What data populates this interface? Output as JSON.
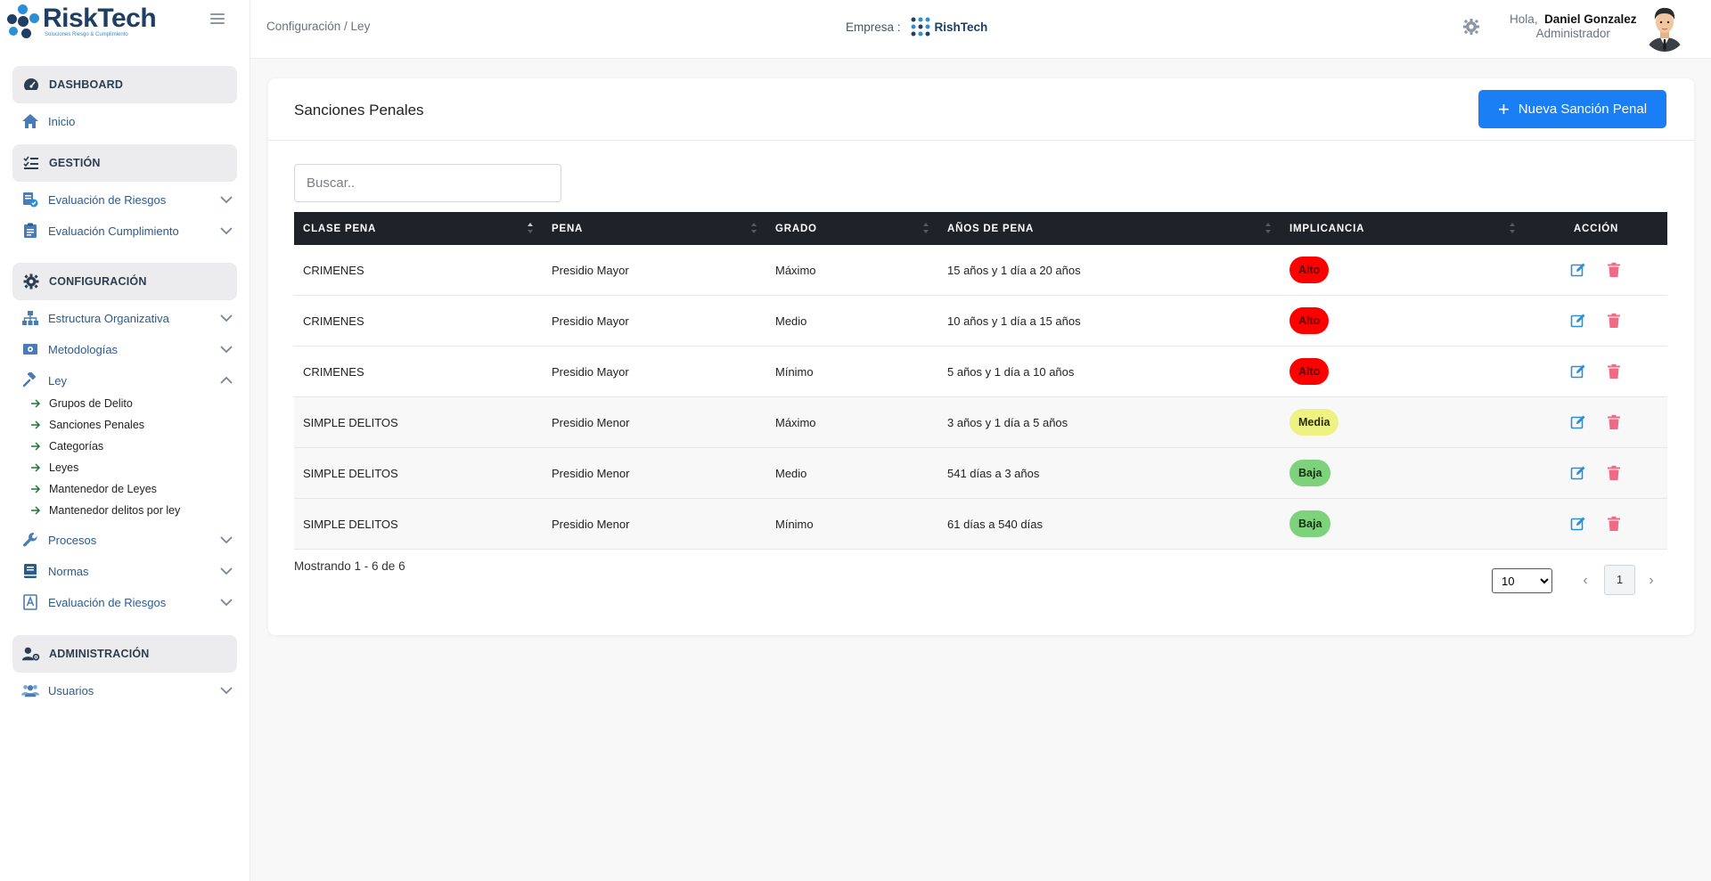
{
  "brand": {
    "name": "RiskTech",
    "tagline": "Soluciones Riesgo & Cumplimiento"
  },
  "header": {
    "breadcrumb": "Configuración / Ley",
    "empresa_label": "Empresa :",
    "empresa_name": "RishTech",
    "greeting": "Hola,",
    "user_name": "Daniel Gonzalez",
    "user_role": "Administrador"
  },
  "sidebar": {
    "sections": {
      "dashboard": "DASHBOARD",
      "gestion": "GESTIÓN",
      "configuracion": "CONFIGURACIÓN",
      "administracion": "ADMINISTRACIÓN"
    },
    "items": {
      "inicio": "Inicio",
      "eval_riesgos": "Evaluación de Riesgos",
      "eval_cumplimiento": "Evaluación Cumplimiento",
      "estructura": "Estructura Organizativa",
      "metodologias": "Metodologías",
      "ley": "Ley",
      "procesos": "Procesos",
      "normas": "Normas",
      "eval_riesgos_2": "Evaluación de Riesgos",
      "usuarios": "Usuarios"
    },
    "ley_sub": [
      "Grupos de Delito",
      "Sanciones Penales",
      "Categorías",
      "Leyes",
      "Mantenedor de Leyes",
      "Mantenedor delitos por ley"
    ]
  },
  "card": {
    "title": "Sanciones Penales",
    "new_button": "Nueva Sanción Penal",
    "search_placeholder": "Buscar.."
  },
  "table": {
    "headers": [
      "CLASE PENA",
      "PENA",
      "GRADO",
      "AÑOS DE PENA",
      "IMPLICANCIA",
      "ACCIÓN"
    ],
    "rows": [
      [
        "CRIMENES",
        "Presidio Mayor",
        "Máximo",
        "15 años y 1 día a 20 años",
        "Alto"
      ],
      [
        "CRIMENES",
        "Presidio Mayor",
        "Medio",
        "10 años y 1 día a 15 años",
        "Alto"
      ],
      [
        "CRIMENES",
        "Presidio Mayor",
        "Mínimo",
        "5 años y 1 día a 10 años",
        "Alto"
      ],
      [
        "SIMPLE DELITOS",
        "Presidio Menor",
        "Máximo",
        "3 años y 1 día a 5 años",
        "Media"
      ],
      [
        "SIMPLE DELITOS",
        "Presidio Menor",
        "Medio",
        "541 días a 3 años",
        "Baja"
      ],
      [
        "SIMPLE DELITOS",
        "Presidio Menor",
        "Mínimo",
        "61 días a 540 días",
        "Baja"
      ]
    ]
  },
  "footer": {
    "showing": "Mostrando 1 - 6 de 6",
    "per_page": "10",
    "current_page": "1"
  },
  "colors": {
    "primary": "#1a7ef5",
    "alto": "#ff0000",
    "media": "#eef283",
    "baja": "#7ed27b",
    "table_header": "#1e2229"
  }
}
